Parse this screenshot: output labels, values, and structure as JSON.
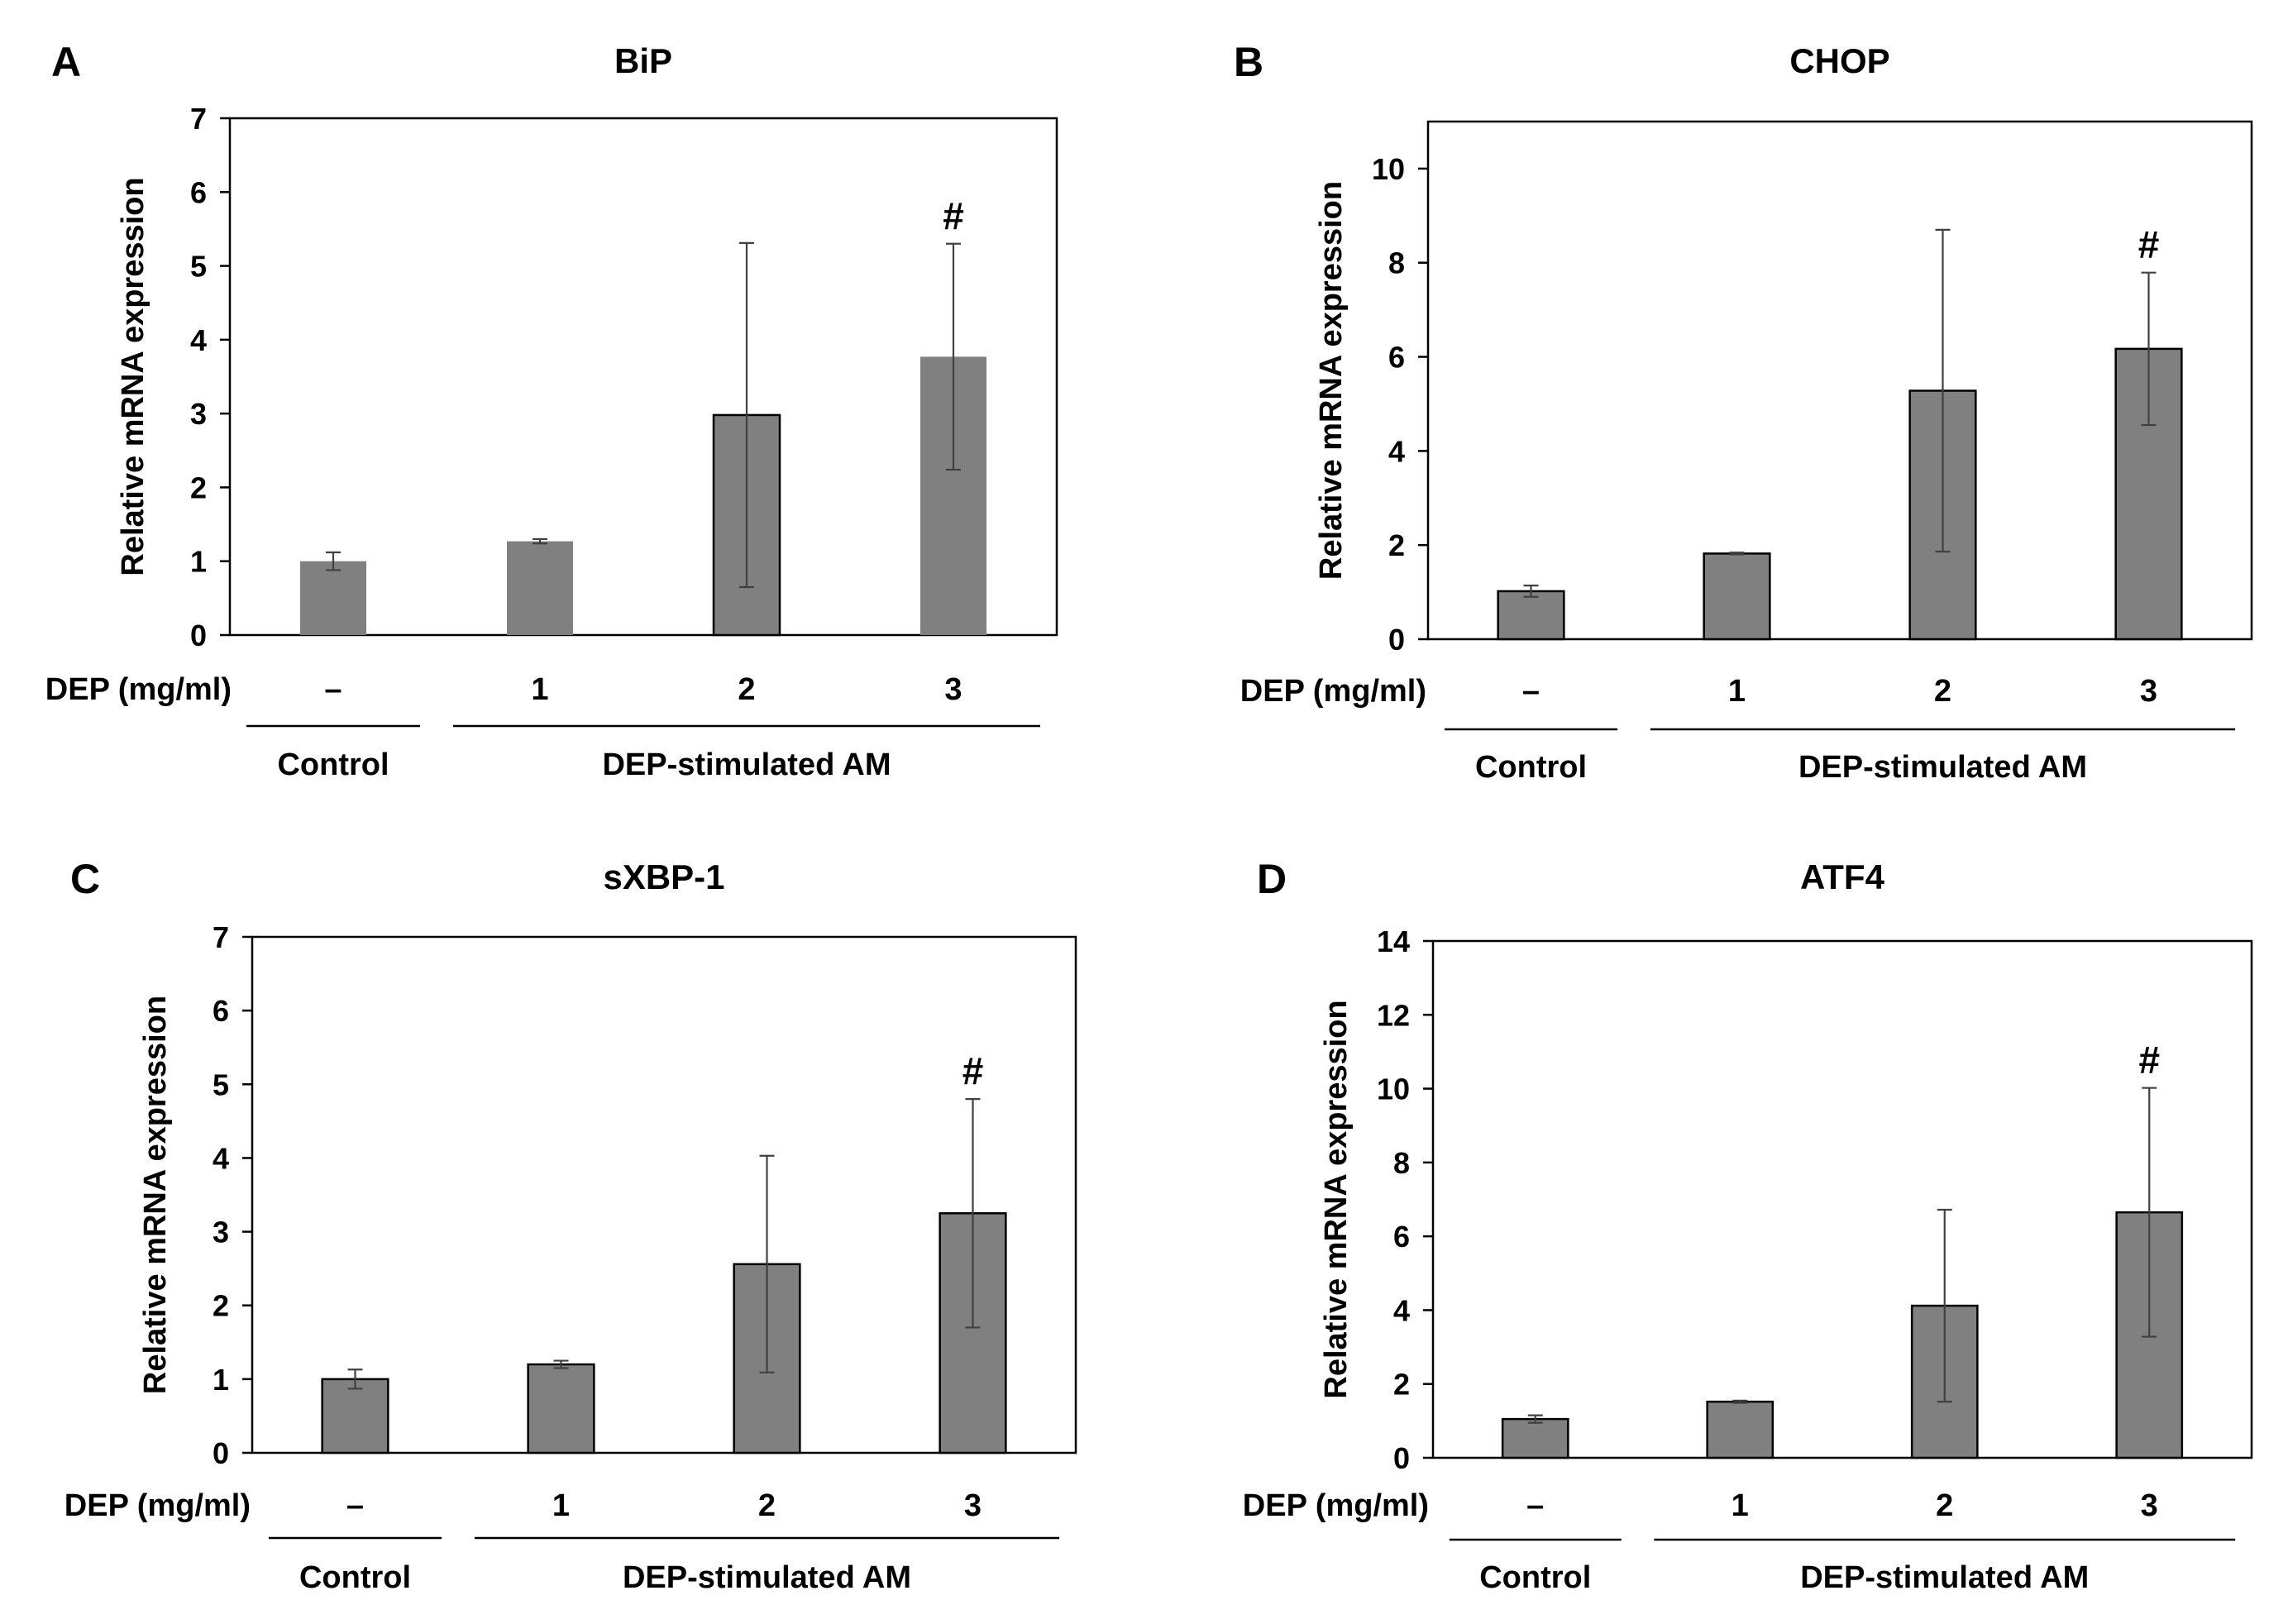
{
  "chart_data": [
    {
      "panel": "A",
      "type": "bar",
      "title": "BiP",
      "ylabel": "Relative mRNA expression",
      "ylim": [
        0,
        7
      ],
      "yticks": [
        0,
        1,
        2,
        3,
        4,
        5,
        6,
        7
      ],
      "row_label": "DEP (mg/ml)",
      "categories": [
        "–",
        "1",
        "2",
        "3"
      ],
      "values": [
        1.0,
        1.27,
        2.98,
        3.77
      ],
      "errors": [
        0.12,
        0.03,
        2.33,
        1.53
      ],
      "significance": [
        "",
        "",
        "",
        "#"
      ],
      "bar_colors": [
        "#808080",
        "#808080",
        "#808080",
        "#808080"
      ],
      "bar_borders": [
        "none",
        "none",
        "#000000",
        "none"
      ],
      "groups": [
        {
          "label": "Control",
          "start": 0,
          "end": 0
        },
        {
          "label": "DEP-stimulated AM",
          "start": 1,
          "end": 3
        }
      ]
    },
    {
      "panel": "B",
      "type": "bar",
      "title": "CHOP",
      "ylabel": "Relative mRNA expression",
      "ylim": [
        0,
        11
      ],
      "yticks": [
        0,
        2,
        4,
        6,
        8,
        10
      ],
      "row_label": "DEP (mg/ml)",
      "categories": [
        "–",
        "1",
        "2",
        "3"
      ],
      "values": [
        1.02,
        1.82,
        5.28,
        6.17
      ],
      "errors": [
        0.12,
        0.02,
        3.42,
        1.62
      ],
      "significance": [
        "",
        "",
        "",
        "#"
      ],
      "bar_colors": [
        "#808080",
        "#808080",
        "#808080",
        "#808080"
      ],
      "bar_borders": [
        "#000000",
        "#000000",
        "#000000",
        "#000000"
      ],
      "groups": [
        {
          "label": "Control",
          "start": 0,
          "end": 0
        },
        {
          "label": "DEP-stimulated AM",
          "start": 1,
          "end": 3
        }
      ]
    },
    {
      "panel": "C",
      "type": "bar",
      "title": "sXBP-1",
      "ylabel": "Relative mRNA expression",
      "ylim": [
        0,
        7
      ],
      "yticks": [
        0,
        1,
        2,
        3,
        4,
        5,
        6,
        7
      ],
      "row_label": "DEP (mg/ml)",
      "categories": [
        "–",
        "1",
        "2",
        "3"
      ],
      "values": [
        1.0,
        1.2,
        2.56,
        3.25
      ],
      "errors": [
        0.13,
        0.05,
        1.47,
        1.55
      ],
      "significance": [
        "",
        "",
        "",
        "#"
      ],
      "bar_colors": [
        "#808080",
        "#808080",
        "#808080",
        "#808080"
      ],
      "bar_borders": [
        "#000000",
        "#000000",
        "#000000",
        "#000000"
      ],
      "groups": [
        {
          "label": "Control",
          "start": 0,
          "end": 0
        },
        {
          "label": "DEP-stimulated AM",
          "start": 1,
          "end": 3
        }
      ]
    },
    {
      "panel": "D",
      "type": "bar",
      "title": "ATF4",
      "ylabel": "Relative mRNA expression",
      "ylim": [
        0,
        14
      ],
      "yticks": [
        0,
        2,
        4,
        6,
        8,
        10,
        12,
        14
      ],
      "row_label": "DEP (mg/ml)",
      "categories": [
        "–",
        "1",
        "2",
        "3"
      ],
      "values": [
        1.05,
        1.52,
        4.12,
        6.65
      ],
      "errors": [
        0.1,
        0.03,
        2.6,
        3.37
      ],
      "significance": [
        "",
        "",
        "",
        "#"
      ],
      "bar_colors": [
        "#808080",
        "#808080",
        "#808080",
        "#808080"
      ],
      "bar_borders": [
        "#000000",
        "#000000",
        "#000000",
        "#000000"
      ],
      "groups": [
        {
          "label": "Control",
          "start": 0,
          "end": 0
        },
        {
          "label": "DEP-stimulated AM",
          "start": 1,
          "end": 3
        }
      ]
    }
  ]
}
